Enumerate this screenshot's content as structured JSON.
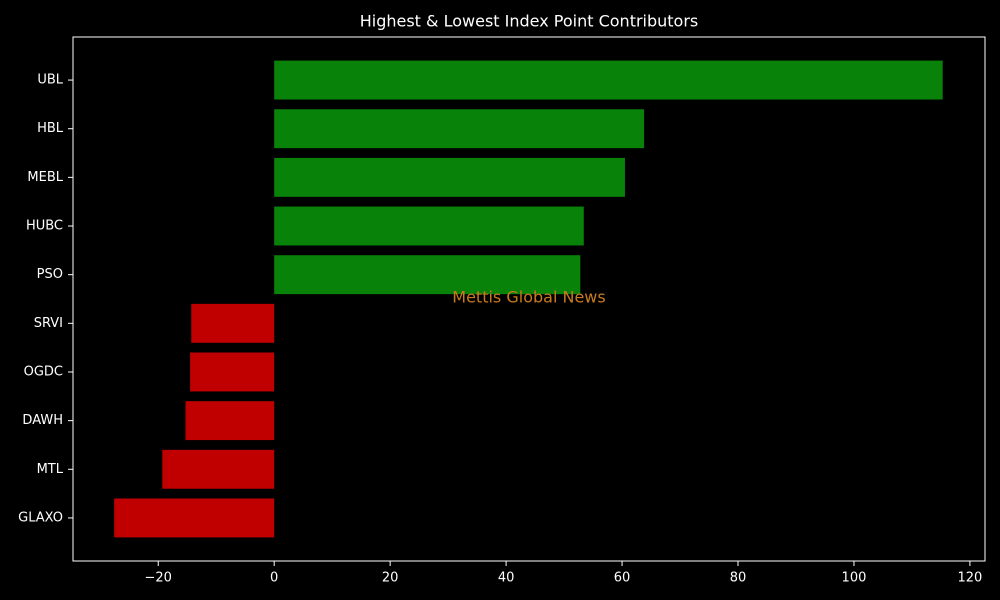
{
  "chart_data": {
    "type": "barh",
    "title": "Highest & Lowest Index Point Contributors",
    "annotation": "Mettis Global News",
    "categories": [
      "UBL",
      "HBL",
      "MEBL",
      "HUBC",
      "PSO",
      "SRVI",
      "OGDC",
      "DAWH",
      "MTL",
      "GLAXO"
    ],
    "values": [
      115.3,
      63.8,
      60.5,
      53.4,
      52.8,
      -14.3,
      -14.5,
      -15.3,
      -19.3,
      -27.6
    ],
    "colors": [
      "#088208",
      "#088208",
      "#088208",
      "#088208",
      "#088208",
      "#c00000",
      "#c00000",
      "#c00000",
      "#c00000",
      "#c00000"
    ],
    "xlim": [
      -34.7,
      122.6
    ],
    "xticks": [
      {
        "value": -20,
        "label": "−20"
      },
      0,
      20,
      40,
      60,
      80,
      100,
      120
    ],
    "grid": false
  }
}
